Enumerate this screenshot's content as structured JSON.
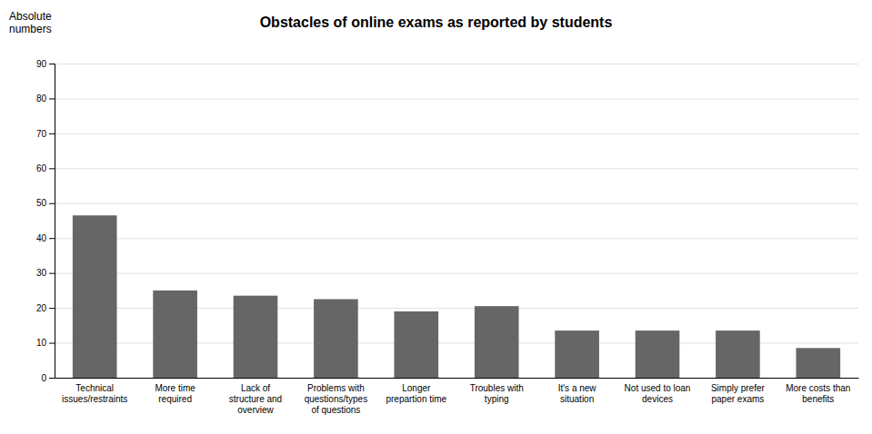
{
  "chart_data": {
    "type": "bar",
    "title": "Obstacles of online exams as reported by students",
    "ylabel": "Absolute\nnumbers",
    "categories": [
      "Technical\nissues/restraints",
      "More time\nrequired",
      "Lack of\nstructure and\noverview",
      "Problems with\nquestions/types\nof questions",
      "Longer\nprepartion time",
      "Troubles with\ntyping",
      "It's a new\nsituation",
      "Not used to loan\ndevices",
      "Simply prefer\npaper exams",
      "More costs than\nbenefits"
    ],
    "values": [
      46.5,
      25.0,
      23.5,
      22.5,
      19.0,
      20.5,
      13.5,
      13.5,
      13.5,
      8.5
    ],
    "color": "#666666",
    "ylim": [
      0,
      90
    ],
    "yticks": [
      0,
      10,
      20,
      30,
      40,
      50,
      60,
      70,
      80,
      90
    ],
    "grid": true
  }
}
